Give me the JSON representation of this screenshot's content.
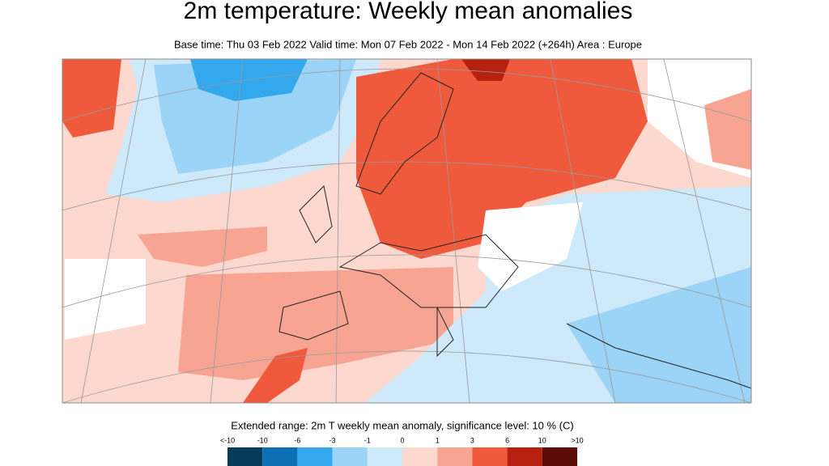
{
  "header": {
    "title": "2m temperature: Weekly mean anomalies",
    "subtitle": "Base time: Thu 03 Feb 2022 Valid time: Mon 07 Feb 2022 - Mon 14 Feb 2022 (+264h) Area : Europe"
  },
  "legend": {
    "title": "Extended range: 2m T weekly mean anomaly, significance level: 10 % (C)",
    "labels": [
      "<-10",
      "-10",
      "-6",
      "-3",
      "-1",
      "0",
      "1",
      "3",
      "6",
      "10",
      ">10"
    ],
    "colors": [
      "#073b5c",
      "#0a6fb3",
      "#33a8ec",
      "#9bd4f6",
      "#cde9fa",
      "#fcd8cf",
      "#f7a592",
      "#ef5a3c",
      "#b5200f",
      "#5c0c06"
    ]
  }
}
